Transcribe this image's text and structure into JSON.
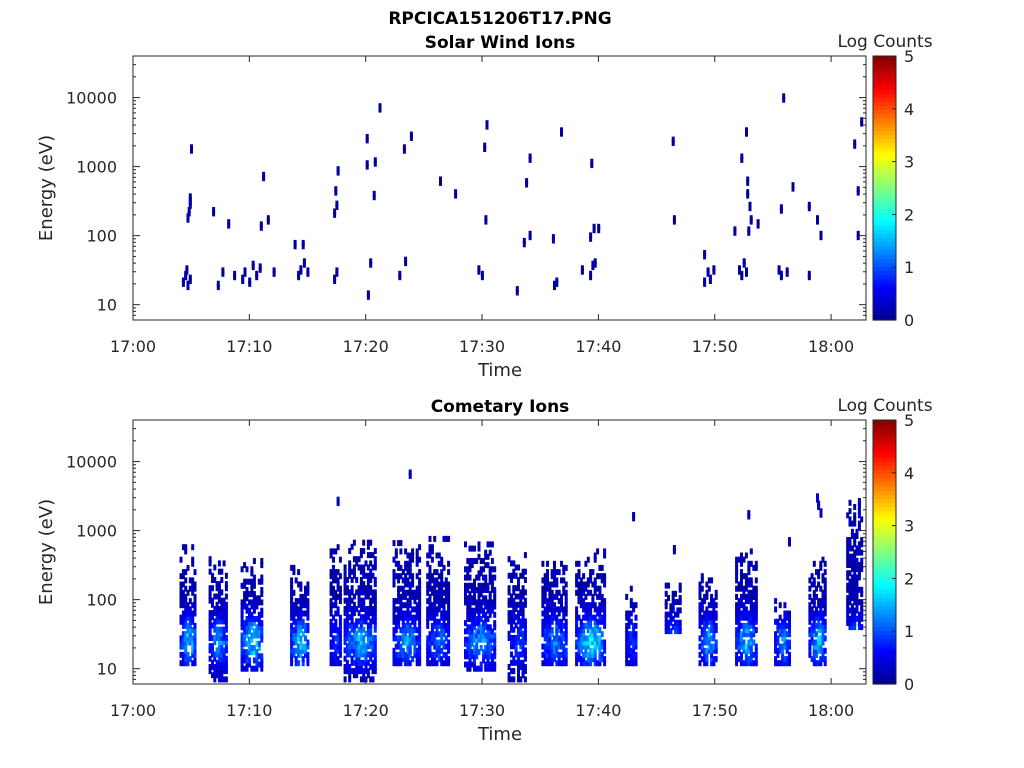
{
  "figure_title": "RPCICA151206T17.PNG",
  "colors": {
    "colormap": [
      "#00008f",
      "#0000ff",
      "#0080ff",
      "#00ffff",
      "#80ff80",
      "#ffff00",
      "#ff8000",
      "#ff0000",
      "#800000"
    ],
    "axis": "#262626",
    "background": "#ffffff"
  },
  "chart_data": [
    {
      "type": "heatmap",
      "title": "Solar Wind Ions",
      "xlabel": "Time",
      "ylabel": "Energy (eV)",
      "x_ticks": [
        "17:00",
        "17:10",
        "17:20",
        "17:30",
        "17:40",
        "17:50",
        "18:00"
      ],
      "x_range_minutes": [
        0,
        63
      ],
      "y_scale": "log",
      "y_range": [
        6,
        40000
      ],
      "y_ticks": [
        "10",
        "100",
        "1000",
        "10000"
      ],
      "colorbar": {
        "label": "Log Counts",
        "range": [
          0,
          5
        ],
        "ticks": [
          "0",
          "1",
          "2",
          "3",
          "4",
          "5"
        ]
      },
      "points": [
        [
          4.2,
          20,
          0.1
        ],
        [
          4.4,
          25,
          0.1
        ],
        [
          4.5,
          30,
          0.1
        ],
        [
          4.6,
          18,
          0.1
        ],
        [
          4.8,
          22,
          0.1
        ],
        [
          4.6,
          170,
          0.1
        ],
        [
          4.7,
          210,
          0.1
        ],
        [
          4.8,
          270,
          0.1
        ],
        [
          4.8,
          330,
          0.1
        ],
        [
          4.9,
          1700,
          0.1
        ],
        [
          6.8,
          210,
          0.1
        ],
        [
          7.2,
          18,
          0.1
        ],
        [
          7.6,
          28,
          0.1
        ],
        [
          8.1,
          140,
          0.1
        ],
        [
          8.6,
          25,
          0.1
        ],
        [
          9.3,
          22,
          0.1
        ],
        [
          9.5,
          28,
          0.1
        ],
        [
          9.9,
          20,
          0.1
        ],
        [
          10.2,
          35,
          0.1
        ],
        [
          10.5,
          25,
          0.1
        ],
        [
          10.8,
          32,
          0.1
        ],
        [
          11.1,
          680,
          0.1
        ],
        [
          10.9,
          130,
          0.1
        ],
        [
          11.5,
          160,
          0.1
        ],
        [
          12.0,
          28,
          0.1
        ],
        [
          13.8,
          70,
          0.1
        ],
        [
          14.1,
          25,
          0.1
        ],
        [
          14.3,
          30,
          0.1
        ],
        [
          14.6,
          38,
          0.1
        ],
        [
          14.9,
          28,
          0.1
        ],
        [
          14.5,
          70,
          0.1
        ],
        [
          17.2,
          22,
          0.1
        ],
        [
          17.4,
          28,
          0.1
        ],
        [
          17.2,
          200,
          0.1
        ],
        [
          17.4,
          260,
          0.1
        ],
        [
          17.3,
          420,
          0.1
        ],
        [
          17.5,
          820,
          0.1
        ],
        [
          20.1,
          13,
          0.1
        ],
        [
          20.3,
          38,
          0.1
        ],
        [
          20.0,
          1000,
          0.1
        ],
        [
          20.0,
          2400,
          0.1
        ],
        [
          20.6,
          360,
          0.1
        ],
        [
          20.7,
          1100,
          0.1
        ],
        [
          21.1,
          6700,
          0.1
        ],
        [
          22.8,
          25,
          0.1
        ],
        [
          23.2,
          1700,
          0.1
        ],
        [
          23.3,
          40,
          0.1
        ],
        [
          23.8,
          2600,
          0.1
        ],
        [
          26.3,
          580,
          0.1
        ],
        [
          27.6,
          380,
          0.1
        ],
        [
          29.6,
          30,
          0.1
        ],
        [
          29.9,
          25,
          0.1
        ],
        [
          30.2,
          160,
          0.1
        ],
        [
          30.1,
          1800,
          0.1
        ],
        [
          30.3,
          3800,
          0.1
        ],
        [
          32.9,
          15,
          0.1
        ],
        [
          33.5,
          75,
          0.1
        ],
        [
          33.7,
          550,
          0.1
        ],
        [
          34.0,
          1250,
          0.1
        ],
        [
          34.0,
          95,
          0.1
        ],
        [
          36.0,
          85,
          0.1
        ],
        [
          36.1,
          18,
          0.1
        ],
        [
          36.3,
          20,
          0.1
        ],
        [
          36.7,
          3000,
          0.1
        ],
        [
          38.5,
          30,
          0.1
        ],
        [
          39.2,
          25,
          0.1
        ],
        [
          39.4,
          35,
          0.1
        ],
        [
          39.6,
          38,
          0.1
        ],
        [
          39.3,
          1050,
          0.1
        ],
        [
          39.2,
          90,
          0.1
        ],
        [
          39.5,
          120,
          0.1
        ],
        [
          39.9,
          120,
          0.1
        ],
        [
          46.3,
          2200,
          0.1
        ],
        [
          46.4,
          160,
          0.1
        ],
        [
          49.0,
          50,
          0.1
        ],
        [
          49.0,
          20,
          0.1
        ],
        [
          49.3,
          28,
          0.1
        ],
        [
          49.5,
          22,
          0.1
        ],
        [
          49.8,
          30,
          0.1
        ],
        [
          51.6,
          110,
          0.1
        ],
        [
          52.0,
          30,
          0.1
        ],
        [
          52.2,
          25,
          0.1
        ],
        [
          52.4,
          38,
          0.1
        ],
        [
          52.6,
          28,
          0.1
        ],
        [
          52.2,
          1250,
          0.1
        ],
        [
          52.6,
          3000,
          0.1
        ],
        [
          52.7,
          580,
          0.1
        ],
        [
          52.7,
          380,
          0.1
        ],
        [
          52.9,
          250,
          0.1
        ],
        [
          53.0,
          160,
          0.1
        ],
        [
          52.8,
          110,
          0.1
        ],
        [
          53.6,
          140,
          0.1
        ],
        [
          55.4,
          30,
          0.1
        ],
        [
          55.6,
          25,
          0.1
        ],
        [
          55.8,
          9300,
          0.1
        ],
        [
          55.6,
          230,
          0.1
        ],
        [
          56.1,
          28,
          0.1
        ],
        [
          56.6,
          480,
          0.1
        ],
        [
          58.0,
          25,
          0.1
        ],
        [
          58.0,
          250,
          0.1
        ],
        [
          58.7,
          160,
          0.1
        ],
        [
          59.0,
          95,
          0.1
        ],
        [
          61.9,
          2000,
          0.1
        ],
        [
          62.2,
          420,
          0.1
        ],
        [
          62.2,
          95,
          0.1
        ],
        [
          62.5,
          4200,
          0.1
        ]
      ]
    },
    {
      "type": "heatmap",
      "title": "Cometary Ions",
      "xlabel": "Time",
      "ylabel": "Energy (eV)",
      "x_ticks": [
        "17:00",
        "17:10",
        "17:20",
        "17:30",
        "17:40",
        "17:50",
        "18:00"
      ],
      "x_range_minutes": [
        0,
        63
      ],
      "y_scale": "log",
      "y_range": [
        6,
        40000
      ],
      "y_ticks": [
        "10",
        "100",
        "1000",
        "10000"
      ],
      "colorbar": {
        "label": "Log Counts",
        "range": [
          0,
          5
        ],
        "ticks": [
          "0",
          "1",
          "2",
          "3",
          "4",
          "5"
        ]
      },
      "bursts": [
        {
          "center": 4.7,
          "width": 1.4,
          "emin": 12,
          "emax": 550,
          "peak": 1.7
        },
        {
          "center": 7.3,
          "width": 1.6,
          "emin": 7,
          "emax": 400,
          "peak": 1.4
        },
        {
          "center": 10.2,
          "width": 1.9,
          "emin": 10,
          "emax": 380,
          "peak": 1.9
        },
        {
          "center": 14.3,
          "width": 1.6,
          "emin": 12,
          "emax": 320,
          "peak": 1.7
        },
        {
          "center": 17.4,
          "width": 1.0,
          "emin": 12,
          "emax": 700,
          "peak": 0.8
        },
        {
          "center": 19.5,
          "width": 2.8,
          "emin": 7,
          "emax": 650,
          "peak": 1.5
        },
        {
          "center": 23.5,
          "width": 2.4,
          "emin": 12,
          "emax": 700,
          "peak": 1.4
        },
        {
          "center": 26.2,
          "width": 2.0,
          "emin": 12,
          "emax": 750,
          "peak": 1.2
        },
        {
          "center": 29.8,
          "width": 2.7,
          "emin": 10,
          "emax": 650,
          "peak": 1.5
        },
        {
          "center": 33.0,
          "width": 1.6,
          "emin": 7,
          "emax": 420,
          "peak": 1.0
        },
        {
          "center": 36.2,
          "width": 2.2,
          "emin": 12,
          "emax": 400,
          "peak": 1.4
        },
        {
          "center": 39.3,
          "width": 2.6,
          "emin": 12,
          "emax": 480,
          "peak": 1.9
        },
        {
          "center": 42.8,
          "width": 1.0,
          "emin": 12,
          "emax": 150,
          "peak": 0.9
        },
        {
          "center": 46.4,
          "width": 1.4,
          "emin": 35,
          "emax": 180,
          "peak": 1.1
        },
        {
          "center": 49.4,
          "width": 1.6,
          "emin": 12,
          "emax": 220,
          "peak": 1.5
        },
        {
          "center": 52.7,
          "width": 1.9,
          "emin": 12,
          "emax": 600,
          "peak": 1.6
        },
        {
          "center": 55.8,
          "width": 1.4,
          "emin": 12,
          "emax": 110,
          "peak": 1.4
        },
        {
          "center": 58.8,
          "width": 1.5,
          "emin": 12,
          "emax": 380,
          "peak": 1.7
        },
        {
          "center": 62.0,
          "width": 1.4,
          "emin": 40,
          "emax": 2400,
          "peak": 1.3
        }
      ],
      "points": [
        [
          23.7,
          6200,
          0.3
        ],
        [
          17.5,
          2500,
          0.3
        ],
        [
          42.9,
          1500,
          0.2
        ],
        [
          52.8,
          1600,
          0.2
        ],
        [
          58.7,
          2800,
          0.4
        ],
        [
          58.8,
          2200,
          0.3
        ],
        [
          59.0,
          1700,
          0.3
        ],
        [
          62.3,
          2400,
          0.2
        ],
        [
          46.4,
          500,
          0.2
        ],
        [
          56.3,
          650,
          0.2
        ]
      ]
    }
  ]
}
